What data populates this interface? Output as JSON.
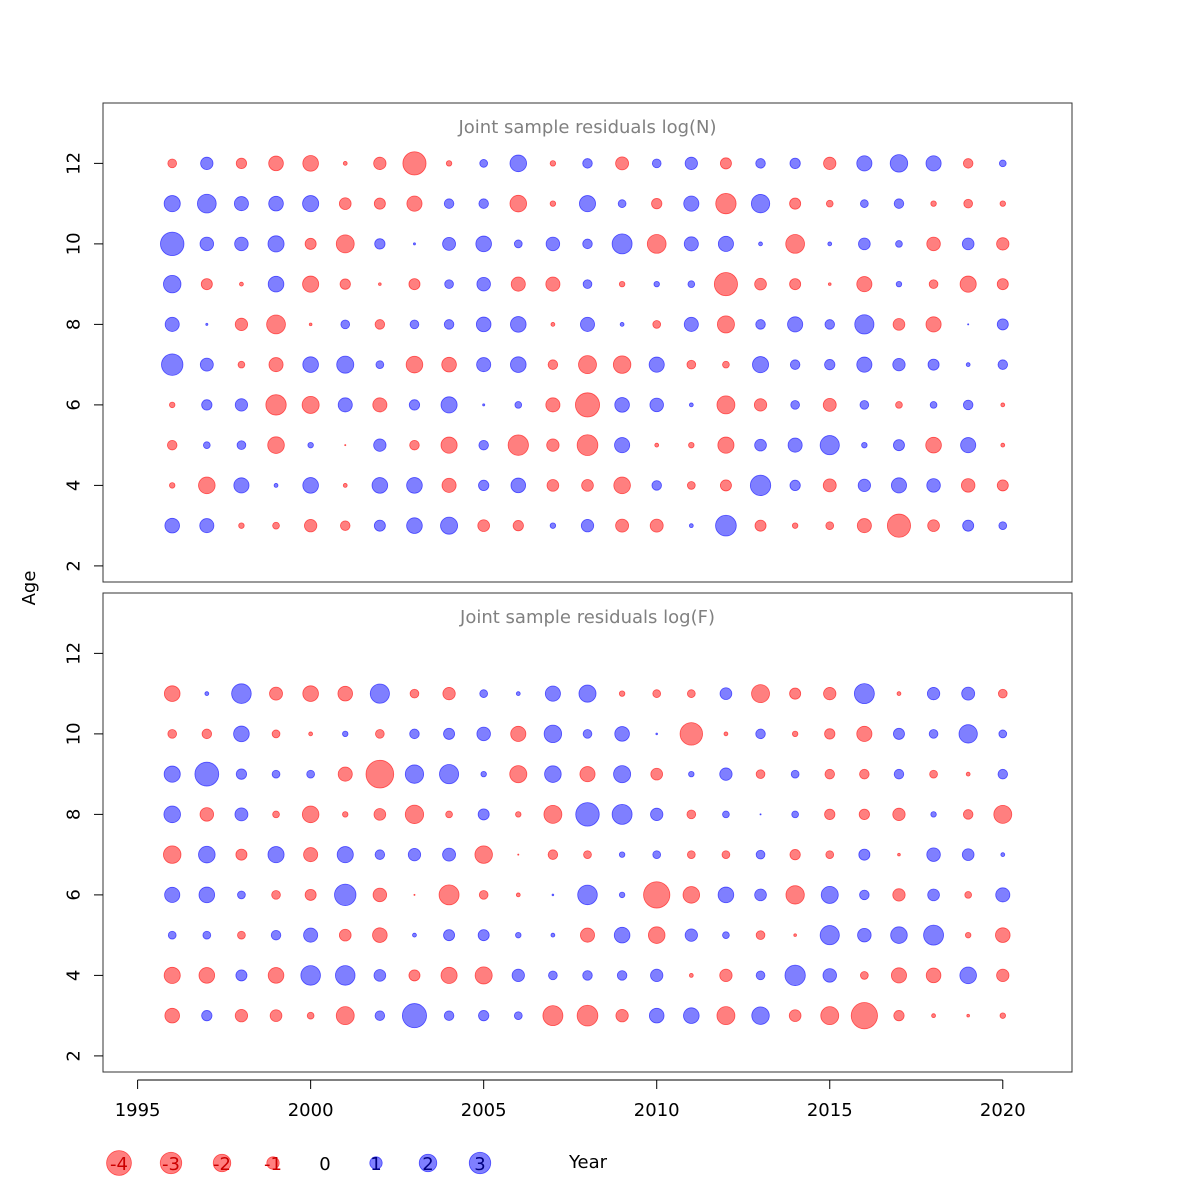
{
  "colors": {
    "negative": "#ff0000",
    "positive": "#0000ff",
    "bubble_opacity": 0.5,
    "title_color": "#808080"
  },
  "chart_data": {
    "type": "scatter",
    "subtype": "bubble",
    "xlabel": "Year",
    "ylabel": "Age",
    "x_ticks": [
      1995,
      2000,
      2005,
      2010,
      2015,
      2020
    ],
    "y_ticks": [
      2,
      4,
      6,
      8,
      10,
      12
    ],
    "xlim": [
      1994,
      2022
    ],
    "legend_placement": "bottom",
    "legend": {
      "labels": [
        "-4",
        "-3",
        "-2",
        "-1",
        "0",
        "1",
        "2",
        "3"
      ],
      "values": [
        -4,
        -3,
        -2,
        -1,
        0,
        1,
        2,
        3
      ]
    },
    "years": [
      1996,
      1997,
      1998,
      1999,
      2000,
      2001,
      2002,
      2003,
      2004,
      2005,
      2006,
      2007,
      2008,
      2009,
      2010,
      2011,
      2012,
      2013,
      2014,
      2015,
      2016,
      2017,
      2018,
      2019,
      2020
    ],
    "panels": [
      {
        "title": "Joint sample residuals log(N)",
        "ylim": [
          1.6,
          13.5
        ],
        "ages": [
          3,
          4,
          5,
          6,
          7,
          8,
          9,
          10,
          11,
          12
        ],
        "residuals": {
          "12": [
            -0.5,
            1.0,
            -0.7,
            -1.4,
            -1.6,
            -0.1,
            -1.0,
            -3.5,
            -0.2,
            0.4,
            1.8,
            -0.2,
            0.6,
            -1.1,
            0.5,
            1.0,
            -0.8,
            0.6,
            0.7,
            -1.0,
            1.5,
            2.0,
            1.5,
            -0.6,
            0.3
          ],
          "11": [
            1.7,
            2.3,
            1.3,
            1.4,
            1.7,
            -0.9,
            -0.8,
            -1.5,
            0.6,
            0.6,
            -1.8,
            -0.2,
            1.7,
            0.4,
            -0.7,
            1.5,
            -2.7,
            2.2,
            -0.8,
            -0.3,
            0.4,
            0.6,
            -0.2,
            -0.5,
            -0.2
          ],
          "10": [
            3.6,
            1.2,
            1.2,
            1.7,
            -0.8,
            -2.1,
            0.7,
            0.03,
            1.1,
            1.6,
            0.4,
            1.2,
            0.6,
            2.6,
            -2.3,
            1.3,
            1.5,
            0.1,
            -2.3,
            0.1,
            0.9,
            0.3,
            -1.2,
            0.9,
            -1.0
          ],
          "9": [
            2.0,
            -0.8,
            -0.1,
            1.6,
            -1.7,
            -0.7,
            -0.05,
            -0.8,
            0.5,
            1.2,
            -1.3,
            -1.3,
            0.5,
            -0.2,
            0.2,
            0.3,
            -3.5,
            -0.9,
            -0.8,
            -0.05,
            -1.5,
            0.2,
            -0.5,
            -1.7,
            -0.8
          ],
          "8": [
            1.3,
            0.03,
            -1.0,
            -2.3,
            -0.05,
            0.5,
            -0.6,
            0.5,
            0.6,
            1.4,
            1.6,
            -0.1,
            1.3,
            0.1,
            -0.4,
            1.3,
            -1.9,
            0.6,
            1.5,
            0.6,
            2.4,
            -0.9,
            -1.5,
            0.01,
            0.8
          ],
          "7": [
            3.0,
            1.1,
            -0.3,
            -1.3,
            1.6,
            1.9,
            0.4,
            -1.8,
            -1.4,
            1.3,
            1.6,
            -0.6,
            -2.1,
            -2.0,
            1.5,
            -0.5,
            -0.3,
            1.7,
            0.6,
            0.7,
            1.5,
            1.0,
            0.8,
            0.1,
            0.6
          ],
          "6": [
            -0.2,
            0.7,
            1.0,
            -2.7,
            -1.9,
            1.3,
            -1.3,
            0.7,
            1.7,
            0.03,
            0.3,
            -1.3,
            -3.8,
            1.4,
            1.2,
            0.1,
            -2.1,
            -1.0,
            0.5,
            -1.1,
            0.5,
            -0.3,
            0.3,
            0.6,
            -0.1
          ],
          "5": [
            -0.6,
            0.3,
            0.5,
            -1.8,
            0.2,
            -0.01,
            1.0,
            -0.6,
            -1.7,
            0.6,
            -2.7,
            -1.0,
            -2.8,
            1.5,
            -0.1,
            -0.2,
            -1.7,
            0.9,
            1.3,
            2.4,
            0.2,
            0.8,
            -1.6,
            1.5,
            -0.1
          ],
          "4": [
            -0.2,
            -1.8,
            1.5,
            0.1,
            1.6,
            -0.1,
            1.6,
            1.6,
            -1.3,
            0.7,
            1.4,
            -0.9,
            -0.9,
            -1.8,
            0.6,
            -0.4,
            -0.8,
            2.7,
            0.7,
            -1.1,
            1.0,
            1.5,
            1.2,
            -1.2,
            -0.8
          ],
          "3": [
            1.4,
            1.3,
            -0.2,
            -0.3,
            -1.0,
            -0.6,
            0.8,
            1.6,
            1.9,
            -0.9,
            -0.7,
            0.2,
            1.0,
            -1.1,
            -1.1,
            0.1,
            2.8,
            -0.8,
            -0.2,
            -0.4,
            -1.3,
            -3.5,
            -0.9,
            0.8,
            0.4
          ]
        }
      },
      {
        "title": "Joint sample residuals log(F)",
        "ylim": [
          1.6,
          13.5
        ],
        "ages": [
          3,
          4,
          5,
          6,
          7,
          8,
          9,
          10,
          11
        ],
        "residuals": {
          "11": [
            -1.6,
            0.1,
            2.5,
            -1.1,
            -1.6,
            -1.4,
            2.4,
            -0.5,
            -1.0,
            0.4,
            0.1,
            1.5,
            1.9,
            -0.2,
            -0.4,
            -0.4,
            0.9,
            -2.1,
            -0.8,
            -1.0,
            2.6,
            -0.1,
            1.0,
            1.1,
            -0.5
          ],
          "10": [
            -0.5,
            -0.6,
            1.6,
            -0.4,
            -0.1,
            0.2,
            -0.5,
            0.6,
            0.8,
            1.2,
            -1.5,
            2.0,
            0.5,
            1.4,
            0.02,
            -3.3,
            -0.1,
            0.6,
            -0.2,
            -0.7,
            -1.5,
            0.8,
            0.5,
            2.2,
            0.4
          ],
          "9": [
            1.7,
            3.7,
            0.7,
            0.4,
            0.4,
            -1.3,
            -5.0,
            2.2,
            2.4,
            0.2,
            -1.9,
            1.8,
            -1.5,
            1.9,
            -0.9,
            0.2,
            1.0,
            -0.5,
            0.4,
            -0.6,
            -0.6,
            0.6,
            -0.4,
            -0.1,
            0.6
          ],
          "8": [
            1.8,
            -1.2,
            1.1,
            -0.3,
            -1.8,
            -0.2,
            -0.9,
            -2.2,
            -0.3,
            0.8,
            -0.2,
            -2.1,
            3.6,
            2.6,
            1.0,
            -0.5,
            0.3,
            0.01,
            0.3,
            -0.7,
            -0.7,
            -1.0,
            0.2,
            -0.6,
            -2.1
          ],
          "7": [
            -2.0,
            1.8,
            -0.8,
            1.7,
            -1.3,
            1.7,
            0.6,
            1.0,
            1.1,
            -2.0,
            -0.01,
            -0.6,
            -0.4,
            0.2,
            0.4,
            -0.4,
            -0.4,
            0.5,
            -0.7,
            -0.4,
            0.8,
            -0.05,
            1.2,
            0.9,
            0.1
          ],
          "6": [
            1.5,
            1.6,
            0.4,
            -0.5,
            -0.8,
            3.0,
            -1.2,
            -0.01,
            -2.6,
            -0.5,
            -0.1,
            0.02,
            2.5,
            0.2,
            -4.5,
            -1.8,
            1.6,
            0.9,
            -2.2,
            1.9,
            0.6,
            -1.0,
            0.9,
            -0.3,
            1.3
          ],
          "5": [
            0.4,
            0.4,
            -0.4,
            0.6,
            1.3,
            -0.9,
            -1.4,
            0.1,
            0.8,
            0.8,
            0.2,
            0.1,
            -1.3,
            1.6,
            -1.8,
            1.0,
            0.3,
            -0.5,
            -0.05,
            2.4,
            1.2,
            1.8,
            2.6,
            -0.2,
            -1.4
          ],
          "4": [
            -1.7,
            -1.6,
            0.8,
            -1.6,
            2.5,
            2.5,
            0.9,
            -0.8,
            -1.7,
            -1.9,
            1.0,
            0.5,
            0.6,
            0.6,
            1.0,
            -0.1,
            -1.0,
            0.5,
            2.7,
            1.2,
            -0.4,
            -1.5,
            -1.4,
            1.8,
            -1.0
          ],
          "3": [
            -1.4,
            0.7,
            -1.0,
            -0.9,
            -0.3,
            -2.1,
            0.6,
            3.8,
            0.6,
            0.7,
            0.4,
            -2.6,
            -2.8,
            -1.0,
            1.4,
            1.6,
            -2.1,
            2.0,
            -0.9,
            -2.1,
            -4.5,
            -0.7,
            -0.1,
            -0.05,
            -0.2
          ]
        }
      }
    ]
  }
}
